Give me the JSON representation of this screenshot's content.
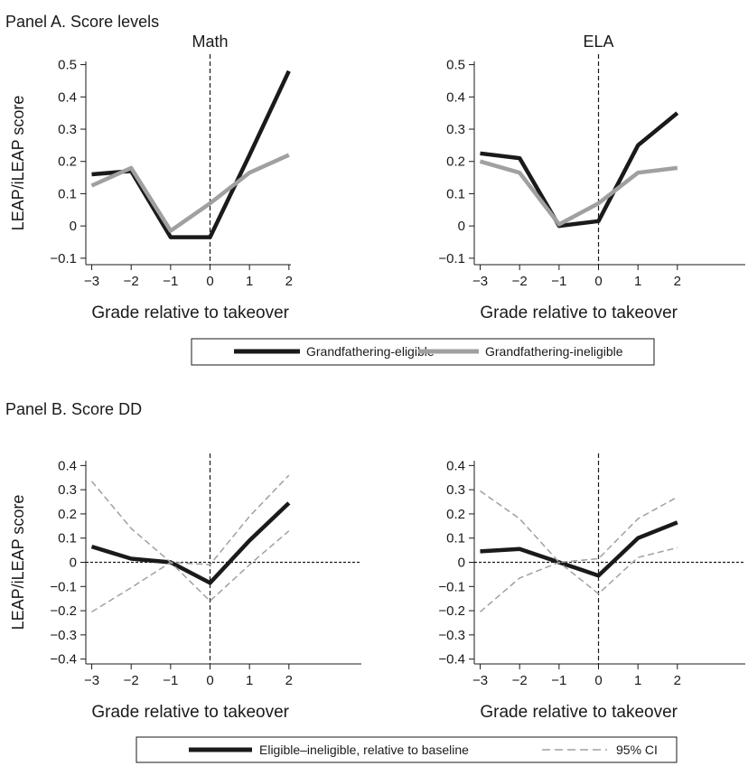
{
  "panels": {
    "a_title": "Panel A. Score levels",
    "b_title": "Panel B. Score DD"
  },
  "legend_a": {
    "items": [
      {
        "label": "Grandfathering-eligible",
        "color": "#1a1a1a",
        "style": "solid-thick"
      },
      {
        "label": "Grandfathering-ineligible",
        "color": "#a0a0a0",
        "style": "solid-thick"
      }
    ]
  },
  "legend_b": {
    "items": [
      {
        "label": "Eligible–ineligible, relative to baseline",
        "color": "#1a1a1a",
        "style": "solid-thick"
      },
      {
        "label": "95% CI",
        "color": "#a0a0a0",
        "style": "dashed"
      }
    ]
  },
  "chart_data": [
    {
      "id": "a-math",
      "type": "line",
      "title": "Math",
      "xlabel": "Grade relative to takeover",
      "ylabel": "LEAP/iLEAP score",
      "x": [
        -3,
        -2,
        -1,
        0,
        1,
        2
      ],
      "xticks": [
        "−3",
        "−2",
        "−1",
        "0",
        "1",
        "2"
      ],
      "yticks": [
        -0.1,
        0,
        0.1,
        0.2,
        0.3,
        0.4,
        0.5
      ],
      "ytick_labels": [
        "−0.1",
        "0",
        "0.1",
        "0.2",
        "0.3",
        "0.4",
        "0.5"
      ],
      "xlim": [
        -3.15,
        2.05
      ],
      "ylim": [
        -0.12,
        0.51
      ],
      "vline": 0,
      "hline": null,
      "series": [
        {
          "name": "Grandfathering-eligible",
          "values": [
            0.16,
            0.17,
            -0.035,
            -0.035,
            0.22,
            0.48
          ],
          "color": "#1a1a1a",
          "style": "thick"
        },
        {
          "name": "Grandfathering-ineligible",
          "values": [
            0.125,
            0.18,
            -0.015,
            0.07,
            0.165,
            0.22
          ],
          "color": "#a0a0a0",
          "style": "thick"
        }
      ]
    },
    {
      "id": "a-ela",
      "type": "line",
      "title": "ELA",
      "xlabel": "Grade relative to takeover",
      "ylabel": "",
      "x": [
        -3,
        -2,
        -1,
        0,
        1,
        2
      ],
      "xticks": [
        "−3",
        "−2",
        "−1",
        "0",
        "1",
        "2"
      ],
      "yticks": [
        -0.1,
        0,
        0.1,
        0.2,
        0.3,
        0.4,
        0.5
      ],
      "ytick_labels": [
        "−0.1",
        "0",
        "0.1",
        "0.2",
        "0.3",
        "0.4",
        "0.5"
      ],
      "xlim": [
        -3.15,
        2.05
      ],
      "ylim": [
        -0.12,
        0.51
      ],
      "vline": 0,
      "hline": null,
      "series": [
        {
          "name": "Grandfathering-eligible",
          "values": [
            0.225,
            0.21,
            0.0,
            0.015,
            0.25,
            0.35
          ],
          "color": "#1a1a1a",
          "style": "thick"
        },
        {
          "name": "Grandfathering-ineligible",
          "values": [
            0.2,
            0.165,
            0.005,
            0.07,
            0.165,
            0.18
          ],
          "color": "#a0a0a0",
          "style": "thick"
        }
      ]
    },
    {
      "id": "b-math",
      "type": "line",
      "title": "",
      "xlabel": "Grade relative to takeover",
      "ylabel": "LEAP/iLEAP score",
      "x": [
        -3,
        -2,
        -1,
        0,
        1,
        2
      ],
      "xticks": [
        "−3",
        "−2",
        "−1",
        "0",
        "1",
        "2"
      ],
      "yticks": [
        -0.4,
        -0.3,
        -0.2,
        -0.1,
        0,
        0.1,
        0.2,
        0.3,
        0.4
      ],
      "ytick_labels": [
        "−0.4",
        "−0.3",
        "−0.2",
        "−0.1",
        "0",
        "0.1",
        "0.2",
        "0.3",
        "0.4"
      ],
      "xlim": [
        -3.15,
        2.05
      ],
      "ylim": [
        -0.42,
        0.42
      ],
      "vline": 0,
      "hline": 0,
      "series": [
        {
          "name": "Eligible–ineligible, relative to baseline",
          "values": [
            0.065,
            0.015,
            0.0,
            -0.085,
            0.09,
            0.245
          ],
          "color": "#1a1a1a",
          "style": "thick"
        },
        {
          "name": "95% CI",
          "values": [
            0.335,
            0.14,
            0.0,
            -0.01,
            0.19,
            0.36
          ],
          "color": "#a0a0a0",
          "style": "dashed"
        },
        {
          "name": "95% CI",
          "values": [
            -0.205,
            -0.105,
            0.0,
            -0.16,
            -0.01,
            0.13
          ],
          "color": "#a0a0a0",
          "style": "dashed"
        }
      ]
    },
    {
      "id": "b-ela",
      "type": "line",
      "title": "",
      "xlabel": "Grade relative to takeover",
      "ylabel": "",
      "x": [
        -3,
        -2,
        -1,
        0,
        1,
        2
      ],
      "xticks": [
        "−3",
        "−2",
        "−1",
        "0",
        "1",
        "2"
      ],
      "yticks": [
        -0.4,
        -0.3,
        -0.2,
        -0.1,
        0,
        0.1,
        0.2,
        0.3,
        0.4
      ],
      "ytick_labels": [
        "−0.4",
        "−0.3",
        "−0.2",
        "−0.1",
        "0",
        "0.1",
        "0.2",
        "0.3",
        "0.4"
      ],
      "xlim": [
        -3.15,
        2.05
      ],
      "ylim": [
        -0.42,
        0.42
      ],
      "vline": 0,
      "hline": 0,
      "series": [
        {
          "name": "Eligible–ineligible, relative to baseline",
          "values": [
            0.045,
            0.055,
            0.0,
            -0.055,
            0.1,
            0.165
          ],
          "color": "#1a1a1a",
          "style": "thick"
        },
        {
          "name": "95% CI",
          "values": [
            0.295,
            0.18,
            0.0,
            0.015,
            0.18,
            0.27
          ],
          "color": "#a0a0a0",
          "style": "dashed"
        },
        {
          "name": "95% CI",
          "values": [
            -0.205,
            -0.065,
            0.0,
            -0.13,
            0.02,
            0.06
          ],
          "color": "#a0a0a0",
          "style": "dashed"
        }
      ]
    }
  ]
}
